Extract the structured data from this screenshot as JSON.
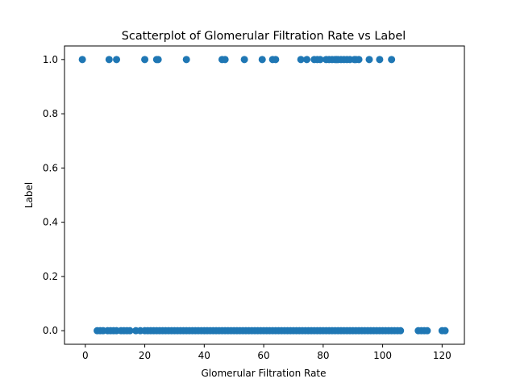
{
  "chart_data": {
    "type": "scatter",
    "title": "Scatterplot of Glomerular Filtration Rate vs Label",
    "xlabel": "Glomerular Filtration Rate",
    "ylabel": "Label",
    "xlim": [
      -7,
      127.5
    ],
    "ylim": [
      -0.05,
      1.05
    ],
    "xticks": [
      0,
      20,
      40,
      60,
      80,
      100,
      120
    ],
    "yticks": [
      0.0,
      0.2,
      0.4,
      0.6,
      0.8,
      1.0
    ],
    "xtick_labels": [
      "0",
      "20",
      "40",
      "60",
      "80",
      "100",
      "120"
    ],
    "ytick_labels": [
      "0.0",
      "0.2",
      "0.4",
      "0.6",
      "0.8",
      "1.0"
    ],
    "grid": false,
    "legend": "none",
    "marker_color": "#1f77b4",
    "series": [
      {
        "label_value": 1,
        "x": [
          -1,
          8,
          10.5,
          20,
          24,
          24.5,
          34,
          46,
          47,
          53.5,
          59.5,
          63,
          64,
          72.5,
          74.5,
          77,
          78,
          79,
          81,
          82,
          83,
          84,
          84.5,
          85,
          86,
          87,
          88,
          89,
          90.5,
          91,
          92,
          95.5,
          99,
          103
        ]
      },
      {
        "label_value": 0,
        "x": [
          4,
          5,
          6,
          7.5,
          8.5,
          9.5,
          10.5,
          12,
          13,
          14,
          15,
          17,
          18.5,
          20,
          21,
          22,
          23,
          24,
          25,
          26,
          27,
          28,
          29,
          30,
          31,
          32,
          33,
          34,
          35,
          36,
          37,
          38,
          39,
          40,
          41,
          42,
          43,
          44,
          45,
          46,
          47,
          48,
          49,
          50,
          51,
          52,
          53,
          54,
          55,
          56,
          57,
          58,
          59,
          60,
          61,
          62,
          63,
          64,
          65,
          66,
          67,
          68,
          69,
          70,
          71,
          72,
          73,
          74,
          75,
          76,
          77,
          78,
          79,
          80,
          81,
          82,
          83,
          84,
          85,
          86,
          87,
          88,
          89,
          90,
          91,
          92,
          93,
          94,
          95,
          96,
          97,
          98,
          99,
          100,
          101,
          102,
          103,
          104,
          105,
          106,
          112,
          113,
          114,
          115,
          120,
          121
        ]
      }
    ]
  }
}
